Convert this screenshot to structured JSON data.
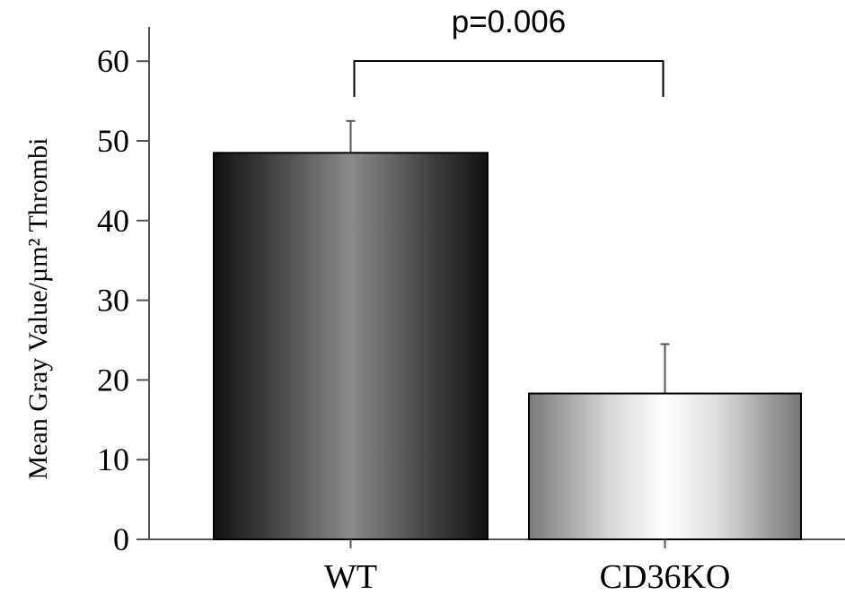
{
  "chart_data": {
    "type": "bar",
    "title": "",
    "xlabel": "",
    "ylabel": "Mean Gray Value/µm² Thrombi",
    "ylim": [
      0,
      65
    ],
    "yticks": [
      0,
      10,
      20,
      30,
      40,
      50,
      60
    ],
    "ytick_labels": [
      "0",
      "10",
      "20",
      "30",
      "40",
      "50",
      "60"
    ],
    "grid": false,
    "legend": "none",
    "categories": [
      "WT",
      "CD36KO"
    ],
    "values": [
      48.5,
      18.3
    ],
    "error_upper": [
      52.5,
      24.5
    ],
    "bar_styles": [
      "dark-gradient",
      "light-gradient"
    ],
    "annotations": [
      {
        "text": "p=0.006",
        "between": [
          "WT",
          "CD36KO"
        ]
      }
    ]
  }
}
